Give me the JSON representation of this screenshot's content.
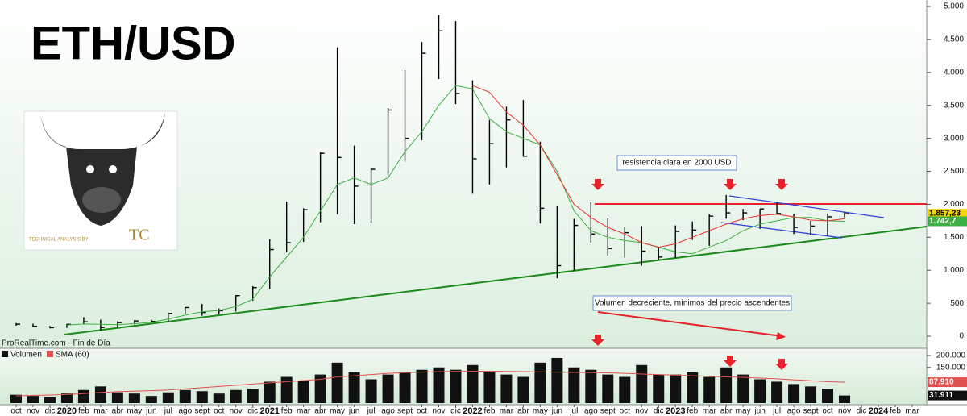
{
  "chart_data": {
    "type": "ohlc",
    "title": "ETH/USD",
    "source": "ProRealTime.com - Fin de Día",
    "annotations": [
      "resistencia clara en 2000 USD",
      "Volumen decreciente, mínimos del precio ascendentes"
    ],
    "logo": {
      "caption": "TECHNICAL ANALYSIS BY",
      "initials": "TC"
    },
    "categories": [
      "oct",
      "nov",
      "dic",
      "2020",
      "feb",
      "mar",
      "abr",
      "may",
      "jun",
      "jul",
      "ago",
      "sept",
      "oct",
      "nov",
      "dic",
      "2021",
      "feb",
      "mar",
      "abr",
      "may",
      "jun",
      "jul",
      "ago",
      "sept",
      "oct",
      "nov",
      "dic",
      "2022",
      "feb",
      "mar",
      "abr",
      "may",
      "jun",
      "jul",
      "ago",
      "sept",
      "oct",
      "nov",
      "dic",
      "2023",
      "feb",
      "mar",
      "abr",
      "may",
      "jun",
      "jul",
      "ago",
      "sept",
      "oct",
      "nov",
      "dic",
      "2024",
      "feb",
      "mar"
    ],
    "high": [
      200,
      190,
      155,
      185,
      290,
      250,
      227,
      245,
      250,
      350,
      445,
      490,
      420,
      620,
      760,
      1470,
      2040,
      1940,
      2790,
      4380,
      2890,
      2550,
      3460,
      4030,
      4460,
      4870,
      4780,
      3880,
      3280,
      3480,
      3580,
      2950,
      1970,
      1780,
      2030,
      1790,
      1660,
      1670,
      1350,
      1680,
      1740,
      1850,
      2140,
      1930,
      1930,
      2030,
      1860,
      1750,
      1860,
      1880,
      null,
      null,
      null,
      null
    ],
    "low": [
      160,
      140,
      120,
      127,
      180,
      90,
      128,
      180,
      216,
      225,
      335,
      310,
      335,
      375,
      540,
      715,
      1270,
      1430,
      1730,
      1850,
      1700,
      1720,
      2450,
      2650,
      2970,
      3900,
      3520,
      2160,
      2300,
      2560,
      2720,
      1710,
      880,
      1000,
      1420,
      1220,
      1190,
      1070,
      1150,
      1190,
      1460,
      1370,
      1780,
      1760,
      1630,
      1840,
      1550,
      1530,
      1520,
      1800,
      null,
      null,
      null,
      null
    ],
    "close": [
      182,
      151,
      130,
      180,
      218,
      133,
      206,
      231,
      225,
      345,
      435,
      360,
      386,
      615,
      737,
      1314,
      1418,
      1918,
      2773,
      2710,
      2275,
      2530,
      3430,
      3000,
      4290,
      4630,
      3680,
      2690,
      2920,
      3280,
      2730,
      1940,
      1070,
      1680,
      1550,
      1330,
      1570,
      1290,
      1200,
      1590,
      1610,
      1820,
      1870,
      1870,
      1930,
      1860,
      1650,
      1670,
      1810,
      1857.23,
      null,
      null,
      null,
      null
    ],
    "close_value_labels": [
      null,
      null,
      null,
      null,
      null,
      null,
      null,
      null,
      null,
      null,
      null,
      null,
      null,
      null,
      null,
      null,
      null,
      null,
      null,
      null,
      null,
      null,
      null,
      null,
      null,
      null,
      null,
      null,
      null,
      null,
      null,
      null,
      null,
      null,
      null,
      null,
      null,
      null,
      null,
      null,
      null,
      null,
      null,
      null,
      null,
      null,
      null,
      null,
      null,
      "1.857,23",
      null,
      null,
      null,
      null
    ],
    "series": [
      {
        "color": "#3cb043",
        "values": [
          null,
          null,
          null,
          170,
          185,
          180,
          175,
          190,
          210,
          260,
          320,
          370,
          390,
          450,
          560,
          900,
          1200,
          1500,
          1900,
          2300,
          2400,
          2300,
          2400,
          2800,
          3100,
          3500,
          3800,
          3750,
          3300,
          3100,
          3000,
          2900,
          2500,
          1900,
          1600,
          1500,
          1450,
          1420,
          1350,
          1280,
          1250,
          1350,
          1450,
          1600,
          1700,
          1750,
          1800,
          1800,
          1750,
          1742.7,
          null,
          null,
          null,
          null
        ],
        "value_labels": [
          null,
          null,
          null,
          null,
          null,
          null,
          null,
          null,
          null,
          null,
          null,
          null,
          null,
          null,
          null,
          null,
          null,
          null,
          null,
          null,
          null,
          null,
          null,
          null,
          null,
          null,
          null,
          null,
          null,
          null,
          null,
          null,
          null,
          null,
          null,
          null,
          null,
          null,
          null,
          null,
          null,
          null,
          null,
          null,
          null,
          null,
          null,
          null,
          null,
          "1.742,7",
          null,
          null,
          null,
          null
        ]
      },
      {
        "color": "#e8322e",
        "values": [
          null,
          null,
          null,
          null,
          null,
          null,
          null,
          null,
          null,
          null,
          null,
          null,
          null,
          null,
          null,
          null,
          null,
          null,
          null,
          null,
          null,
          null,
          null,
          null,
          null,
          null,
          null,
          3800,
          3700,
          3400,
          3200,
          2900,
          2450,
          2000,
          1800,
          1650,
          1550,
          1420,
          1350,
          1400,
          1500,
          1600,
          1700,
          1780,
          1830,
          1850,
          1810,
          1760,
          1750,
          1780,
          null,
          null,
          null,
          null
        ]
      }
    ],
    "ylim": [
      -183,
      5098
    ],
    "yticks": [
      0,
      500,
      {
        "value": 1000,
        "label": "1.000"
      },
      {
        "value": 1500,
        "label": "1.500"
      },
      {
        "value": 2000,
        "label": "2.000"
      },
      {
        "value": 2500,
        "label": "2.500"
      },
      {
        "value": 3000,
        "label": "3.000"
      },
      {
        "value": 3500,
        "label": "3.500"
      },
      {
        "value": 4000,
        "label": "4.000"
      },
      {
        "value": 4500,
        "label": "4.500"
      },
      {
        "value": 5000,
        "label": "5.000"
      }
    ],
    "volume": {
      "legend": [
        "Volumen",
        "SMA (60)"
      ],
      "colors": [
        "#111111",
        "#e05050"
      ],
      "values": [
        35000,
        30000,
        25000,
        40000,
        55000,
        70000,
        45000,
        40000,
        30000,
        45000,
        55000,
        50000,
        40000,
        55000,
        60000,
        90000,
        110000,
        95000,
        120000,
        170000,
        130000,
        100000,
        120000,
        130000,
        140000,
        150000,
        140000,
        160000,
        130000,
        120000,
        110000,
        170000,
        190000,
        150000,
        140000,
        120000,
        110000,
        160000,
        120000,
        120000,
        130000,
        110000,
        150000,
        120000,
        100000,
        90000,
        80000,
        70000,
        60000,
        31911,
        null,
        null,
        null,
        null
      ],
      "value_labels": [
        null,
        null,
        null,
        null,
        null,
        null,
        null,
        null,
        null,
        null,
        null,
        null,
        null,
        null,
        null,
        null,
        null,
        null,
        null,
        null,
        null,
        null,
        null,
        null,
        null,
        null,
        null,
        null,
        null,
        null,
        null,
        null,
        null,
        null,
        null,
        null,
        null,
        null,
        null,
        null,
        null,
        null,
        null,
        null,
        null,
        null,
        null,
        null,
        null,
        "31.911",
        null,
        null,
        null,
        null
      ],
      "sma": [
        30000,
        32000,
        34000,
        36000,
        40000,
        45000,
        48000,
        50000,
        52000,
        55000,
        60000,
        65000,
        70000,
        75000,
        80000,
        85000,
        90000,
        95000,
        100000,
        110000,
        115000,
        120000,
        125000,
        128000,
        130000,
        132000,
        133000,
        134000,
        134000,
        133000,
        132000,
        131000,
        130000,
        129000,
        128000,
        127000,
        125000,
        122000,
        120000,
        118000,
        115000,
        113000,
        110000,
        108000,
        105000,
        102000,
        98000,
        94000,
        90000,
        87910,
        null,
        null,
        null,
        null
      ],
      "sma_value_labels": [
        null,
        null,
        null,
        null,
        null,
        null,
        null,
        null,
        null,
        null,
        null,
        null,
        null,
        null,
        null,
        null,
        null,
        null,
        null,
        null,
        null,
        null,
        null,
        null,
        null,
        null,
        null,
        null,
        null,
        null,
        null,
        null,
        null,
        null,
        null,
        null,
        null,
        null,
        null,
        null,
        null,
        null,
        null,
        null,
        null,
        null,
        null,
        null,
        null,
        "87.910",
        null,
        null,
        null,
        null
      ],
      "ylim": [
        0,
        230508
      ],
      "yticks": [
        {
          "value": 150000,
          "label": "150.000"
        },
        {
          "value": 200000,
          "label": "200.000"
        }
      ]
    }
  }
}
